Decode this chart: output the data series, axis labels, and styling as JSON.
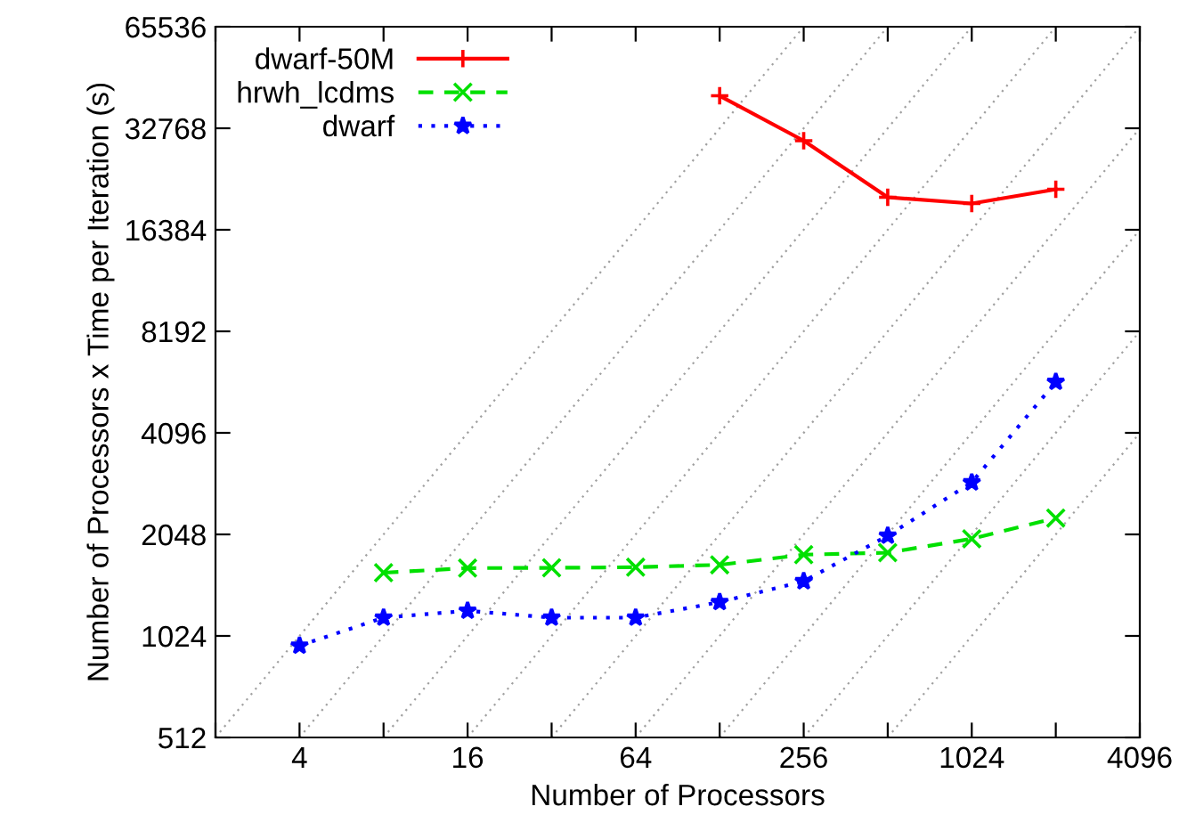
{
  "chart_data": {
    "type": "line",
    "xlabel": "Number of Processors",
    "ylabel": "Number of Processors x Time per Iteration (s)",
    "log": "xy",
    "xlim": [
      2,
      4096
    ],
    "ylim": [
      512,
      65536
    ],
    "xticks": [
      {
        "value": 2,
        "label": null
      },
      4,
      {
        "value": 8,
        "label": null
      },
      16,
      {
        "value": 32,
        "label": null
      },
      64,
      {
        "value": 128,
        "label": null
      },
      256,
      {
        "value": 512,
        "label": null
      },
      1024,
      {
        "value": 2048,
        "label": null
      },
      4096
    ],
    "yticks": [
      512,
      1024,
      2048,
      4096,
      8192,
      16384,
      32768,
      65536
    ],
    "grid": false,
    "legend": "top left",
    "series": [
      {
        "name": "dwarf-50M",
        "color": "#ff0000",
        "marker": "plus",
        "line_style": "solid",
        "x": [
          128,
          256,
          512,
          1024,
          2048
        ],
        "values": [
          40900,
          30100,
          20450,
          19600,
          21600
        ]
      },
      {
        "name": "hrwh_lcdms",
        "color": "#00e000",
        "marker": "cross",
        "line_style": "dashed",
        "x": [
          8,
          16,
          32,
          64,
          128,
          256,
          512,
          1024,
          2048
        ],
        "values": [
          1577,
          1627,
          1630,
          1637,
          1664,
          1783,
          1808,
          1988,
          2290
        ]
      },
      {
        "name": "dwarf",
        "color": "#0000ff",
        "marker": "star",
        "line_style": "dotted",
        "x": [
          4,
          8,
          16,
          32,
          64,
          128,
          256,
          512,
          1024,
          2048
        ],
        "values": [
          958,
          1160,
          1216,
          1160,
          1160,
          1290,
          1487,
          2030,
          2920,
          5800
        ]
      },
      {
        "color": "#a0a0a0",
        "marker": "none",
        "line_style": "dotted",
        "x": [
          2,
          256
        ],
        "values": [
          512,
          65536
        ]
      },
      {
        "color": "#a0a0a0",
        "marker": "none",
        "line_style": "dotted",
        "x": [
          4,
          512
        ],
        "values": [
          512,
          65536
        ]
      },
      {
        "color": "#a0a0a0",
        "marker": "none",
        "line_style": "dotted",
        "x": [
          8,
          1024
        ],
        "values": [
          512,
          65536
        ]
      },
      {
        "color": "#a0a0a0",
        "marker": "none",
        "line_style": "dotted",
        "x": [
          16,
          2048
        ],
        "values": [
          512,
          65536
        ]
      },
      {
        "color": "#a0a0a0",
        "marker": "none",
        "line_style": "dotted",
        "x": [
          32,
          4096
        ],
        "values": [
          512,
          65536
        ]
      },
      {
        "color": "#a0a0a0",
        "marker": "none",
        "line_style": "dotted",
        "x": [
          64,
          4096
        ],
        "values": [
          512,
          32768
        ]
      },
      {
        "color": "#a0a0a0",
        "marker": "none",
        "line_style": "dotted",
        "x": [
          128,
          4096
        ],
        "values": [
          512,
          16384
        ]
      },
      {
        "color": "#a0a0a0",
        "marker": "none",
        "line_style": "dotted",
        "x": [
          256,
          4096
        ],
        "values": [
          512,
          8192
        ]
      },
      {
        "color": "#a0a0a0",
        "marker": "none",
        "line_style": "dotted",
        "x": [
          512,
          4096
        ],
        "values": [
          512,
          4096
        ]
      }
    ]
  }
}
